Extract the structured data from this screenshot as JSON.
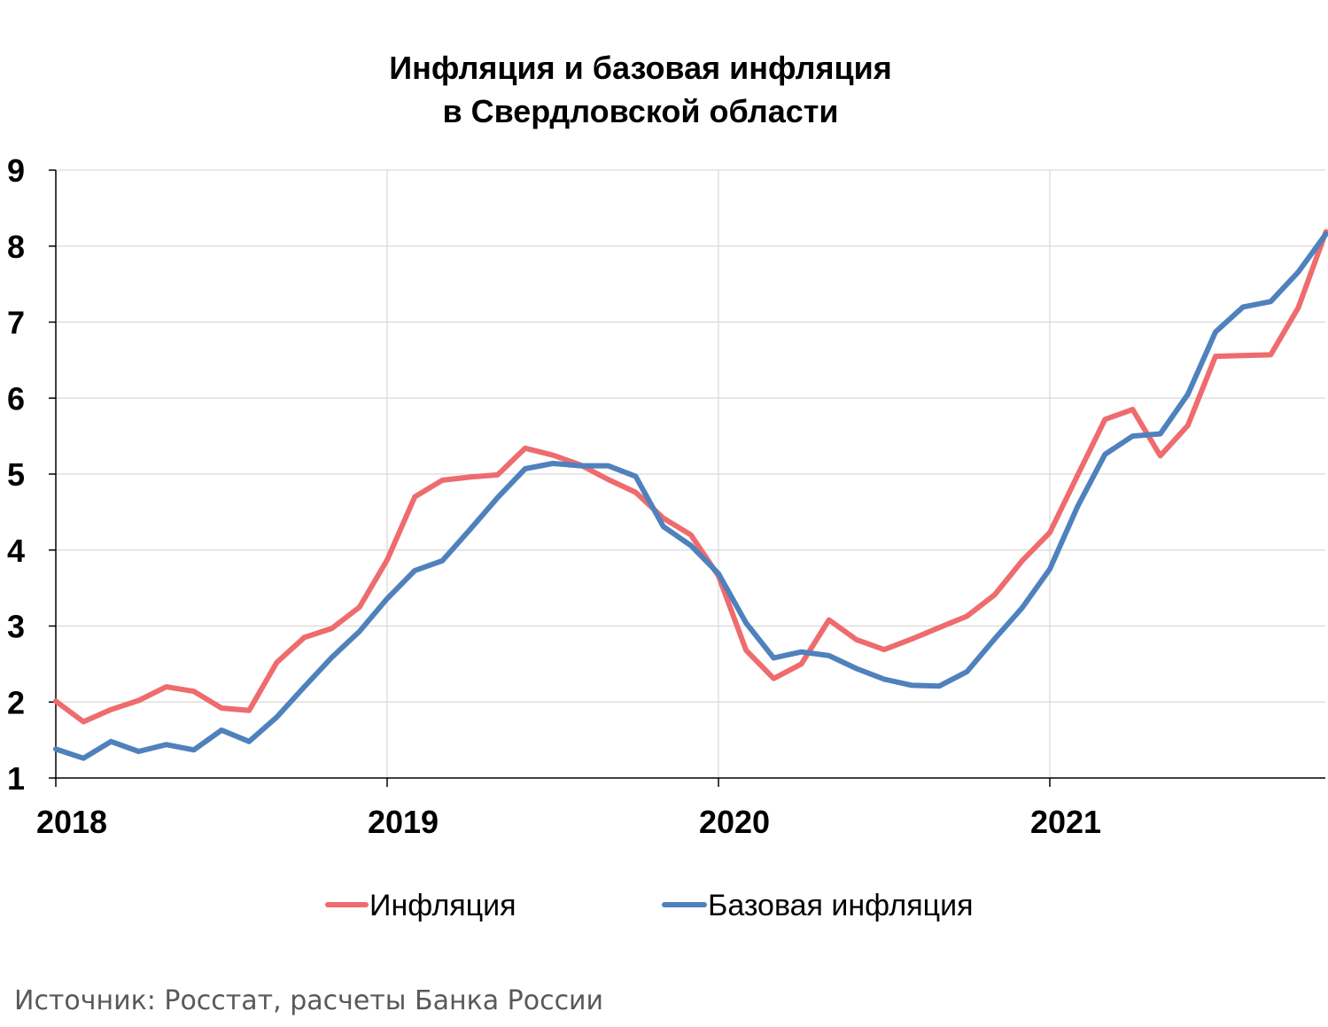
{
  "chart_data": {
    "type": "line",
    "title": [
      "Инфляция и базовая инфляция",
      "в  Свердловской области"
    ],
    "xlabel": "",
    "ylabel": "",
    "x_ticks": [
      "2018",
      "2019",
      "2020",
      "2021"
    ],
    "y_ticks": [
      "1",
      "2",
      "3",
      "4",
      "5",
      "6",
      "7",
      "8",
      "9"
    ],
    "ylim": [
      1,
      9
    ],
    "x_start": "2018-01",
    "grid": {
      "vertical": true,
      "horizontal": true
    },
    "legend_position": "bottom",
    "series": [
      {
        "name": "Инфляция",
        "color": "#ee6b6e",
        "values": [
          2.01,
          1.74,
          1.9,
          2.02,
          2.2,
          2.14,
          1.92,
          1.89,
          2.52,
          2.85,
          2.97,
          3.25,
          3.87,
          4.7,
          4.92,
          4.96,
          4.99,
          5.34,
          5.25,
          5.12,
          4.93,
          4.76,
          4.42,
          4.2,
          3.66,
          2.68,
          2.31,
          2.5,
          3.08,
          2.82,
          2.69,
          2.83,
          2.98,
          3.13,
          3.41,
          3.86,
          4.23,
          4.98,
          5.72,
          5.85,
          5.24,
          5.64,
          6.55,
          6.56,
          6.57,
          7.19,
          8.19
        ]
      },
      {
        "name": "Базовая инфляция",
        "color": "#4f81bd",
        "values": [
          1.38,
          1.26,
          1.48,
          1.35,
          1.44,
          1.37,
          1.63,
          1.48,
          1.8,
          2.2,
          2.59,
          2.93,
          3.36,
          3.73,
          3.86,
          4.27,
          4.69,
          5.07,
          5.14,
          5.11,
          5.11,
          4.97,
          4.31,
          4.06,
          3.69,
          3.04,
          2.58,
          2.66,
          2.61,
          2.44,
          2.3,
          2.22,
          2.21,
          2.4,
          2.83,
          3.24,
          3.75,
          4.57,
          5.26,
          5.5,
          5.53,
          6.05,
          6.87,
          7.2,
          7.27,
          7.66,
          8.16
        ]
      }
    ]
  },
  "source": "Источник: Росстат, расчеты Банка России"
}
